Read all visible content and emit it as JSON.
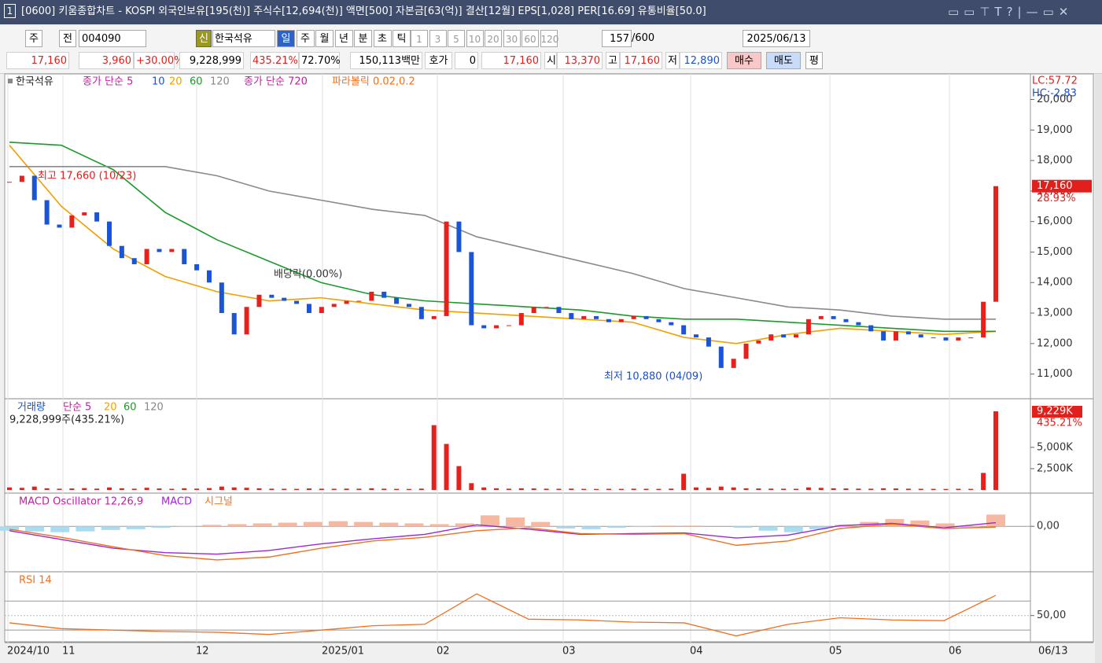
{
  "window": {
    "number": "1",
    "title": "[0600] 키움종합차트 - KOSPI 외국인보유[195(천)] 주식수[12,694(천)] 액면[500] 자본금[63(억)] 결산[12월] EPS[1,028] PER[16.69] 유통비율[50.0]"
  },
  "toolbar": {
    "market": "주",
    "prev": "전",
    "code": "004090",
    "new": "신",
    "name": "한국석유",
    "periods": [
      "일",
      "주",
      "월",
      "년",
      "분",
      "초",
      "틱"
    ],
    "intervals": [
      "1",
      "3",
      "5",
      "10",
      "20",
      "30",
      "60",
      "120"
    ],
    "count": "157",
    "max": "/600",
    "date": "2025/06/13"
  },
  "quote": {
    "price": "17,160",
    "change": "3,960",
    "rate": "+30.00%",
    "volume": "9,228,999",
    "volume_rate": "435.21%",
    "turnover": "72.70%",
    "amount": "150,113백만",
    "bid_label": "호가",
    "bid": "0",
    "ask": "17,160",
    "open_label": "시",
    "open": "13,370",
    "high_label": "고",
    "high": "17,160",
    "low_label": "저",
    "low": "12,890",
    "buy": "매수",
    "sell": "매도",
    "avg": "평"
  },
  "chart_data": [
    {
      "type": "candlestick",
      "name": "한국석유",
      "up_color": "#e8201c",
      "down_color": "#1a55d8",
      "values": [
        17300,
        17500,
        16700,
        15900,
        15800,
        16200,
        16300,
        16000,
        15200,
        14800,
        14600,
        15100,
        15000,
        15100,
        14600,
        14400,
        14000,
        13000,
        12300,
        13200,
        13600,
        13500,
        13400,
        13300,
        13000,
        13200,
        13300,
        13400,
        13400,
        13700,
        13500,
        13300,
        13200,
        12800,
        12900,
        16000,
        15000,
        12600,
        12500,
        12600,
        12600,
        13000,
        13200,
        13200,
        13000,
        12800,
        12900,
        12800,
        12700,
        12800,
        12900,
        12800,
        12700,
        12600,
        12300,
        12200,
        11900,
        11200,
        11500,
        12000,
        12100,
        12300,
        12200,
        12300,
        12800,
        12900,
        12800,
        12700,
        12600,
        12400,
        12100,
        12400,
        12300,
        12200,
        12200,
        12100,
        12200,
        12200,
        13370,
        17160
      ],
      "series": [
        {
          "name": "20",
          "color": "#f0a000",
          "values": [
            18500,
            16500,
            15100,
            14200,
            13700,
            13400,
            13500,
            13300,
            13100,
            13000,
            12900,
            12800,
            12700,
            12200,
            12000,
            12300,
            12500,
            12400,
            12300,
            12400
          ]
        },
        {
          "name": "60",
          "color": "#1a9a2a",
          "values": [
            18600,
            18500,
            17700,
            16300,
            15400,
            14700,
            14000,
            13600,
            13400,
            13300,
            13200,
            13100,
            12900,
            12800,
            12800,
            12700,
            12600,
            12500,
            12400,
            12400
          ]
        },
        {
          "name": "120",
          "color": "#8a8a8a",
          "values": [
            17800,
            17800,
            17800,
            17800,
            17500,
            17000,
            16700,
            16400,
            16200,
            15500,
            15100,
            14700,
            14300,
            13800,
            13500,
            13200,
            13100,
            12900,
            12800,
            12800
          ]
        }
      ],
      "legend_texts": [
        "종가 단순 5",
        "10",
        "종가 단순 720",
        "파라볼릭 0.02,0.2"
      ],
      "ylim": [
        10500,
        20400
      ],
      "yticks": [
        {
          "value": 11000,
          "label": "11,000"
        },
        {
          "value": 12000,
          "label": "12,000"
        },
        {
          "value": 13000,
          "label": "13,000"
        },
        {
          "value": 14000,
          "label": "14,000"
        },
        {
          "value": 15000,
          "label": "15,000"
        },
        {
          "value": 16000,
          "label": "16,000"
        },
        {
          "value": 17000,
          "label": "17,000"
        },
        {
          "value": 18000,
          "label": "18,000"
        },
        {
          "value": 19000,
          "label": "19,000"
        },
        {
          "value": 20000,
          "label": "20,000"
        }
      ],
      "annotations": {
        "high": "최고 17,660 (10/23)",
        "low": "최저 10,880 (04/09)",
        "dividend": "배당락(0.00%)"
      },
      "lc": "LC:57.72",
      "hc": "HC:-2.83",
      "last_label": "17,160",
      "last_rate": "28.93%"
    },
    {
      "type": "bar",
      "name": "거래량",
      "color": "#e8201c",
      "legend_texts": [
        "단순 5",
        "20",
        "60",
        "120"
      ],
      "summary": "9,228,999주(435.21%)",
      "values": [
        300,
        250,
        400,
        200,
        150,
        180,
        220,
        160,
        300,
        200,
        150,
        260,
        180,
        140,
        200,
        160,
        220,
        400,
        300,
        260,
        200,
        150,
        140,
        130,
        180,
        150,
        140,
        160,
        150,
        200,
        150,
        130,
        120,
        160,
        7600,
        5400,
        2800,
        800,
        300,
        200,
        150,
        200,
        180,
        150,
        140,
        160,
        130,
        120,
        140,
        130,
        150,
        140,
        130,
        160,
        1900,
        300,
        250,
        400,
        300,
        200,
        180,
        160,
        150,
        140,
        300,
        250,
        200,
        180,
        160,
        150,
        200,
        180,
        150,
        140,
        130,
        120,
        140,
        130,
        2000,
        9229
      ],
      "ylim": [
        0,
        9500
      ],
      "yticks": [
        {
          "value": 2500,
          "label": "2,500K"
        },
        {
          "value": 5000,
          "label": "5,000K"
        }
      ],
      "last_label": "9,229K",
      "last_rate": "435.21%"
    },
    {
      "type": "macd",
      "name": "MACD Oscillator 12,26,9",
      "oscillator": [
        -60,
        -70,
        -80,
        -70,
        -50,
        -40,
        -20,
        -10,
        20,
        30,
        40,
        50,
        60,
        70,
        60,
        50,
        40,
        30,
        40,
        150,
        120,
        60,
        -30,
        -40,
        -20,
        -10,
        10,
        10,
        0,
        -20,
        -60,
        -80,
        -40,
        20,
        60,
        100,
        80,
        40,
        -10,
        160
      ],
      "series": [
        {
          "name": "MACD",
          "color": "#9a2ad0",
          "values": [
            -60,
            -180,
            -300,
            -360,
            -380,
            -330,
            -240,
            -170,
            -110,
            20,
            -40,
            -110,
            -100,
            -90,
            -160,
            -120,
            10,
            40,
            -20,
            50
          ]
        },
        {
          "name": "시그널",
          "color": "#f07020",
          "values": [
            -40,
            -150,
            -280,
            -400,
            -460,
            -420,
            -300,
            -200,
            -150,
            -60,
            -20,
            -100,
            -110,
            -100,
            -260,
            -200,
            -30,
            30,
            -30,
            -10
          ]
        }
      ],
      "ylim": [
        -600,
        400
      ],
      "yticks": [
        {
          "value": 0,
          "label": "0,00"
        }
      ]
    },
    {
      "type": "line",
      "name": "RSI 14",
      "color": "#f07020",
      "values": [
        40,
        32,
        30,
        28,
        27,
        24,
        30,
        36,
        38,
        80,
        45,
        44,
        41,
        40,
        22,
        38,
        47,
        44,
        43,
        78
      ],
      "ylim": [
        15,
        105
      ],
      "yticks": [
        {
          "value": 50,
          "label": "50,00"
        }
      ],
      "guides": [
        30,
        70
      ]
    }
  ],
  "time_axis": {
    "labels": [
      "2024/10",
      "11",
      "12",
      "2025/01",
      "02",
      "03",
      "04",
      "05",
      "06"
    ],
    "last": "06/13"
  }
}
